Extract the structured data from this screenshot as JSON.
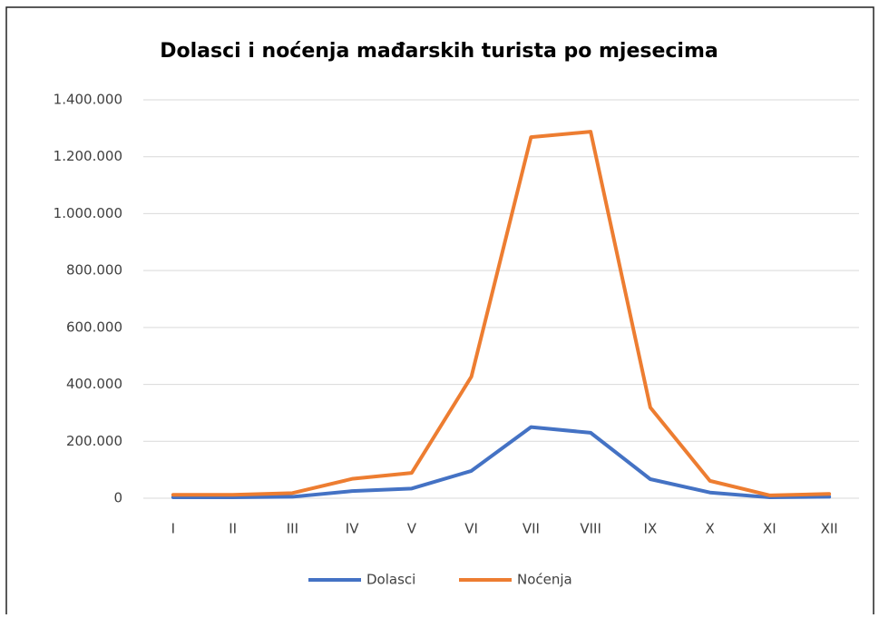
{
  "chart_data": {
    "type": "line",
    "title": "Dolasci i noćenja mađarskih turista po mjesecima",
    "categories": [
      "I",
      "II",
      "III",
      "IV",
      "V",
      "VI",
      "VII",
      "VIII",
      "IX",
      "X",
      "XI",
      "XII"
    ],
    "series": [
      {
        "name": "Dolasci",
        "color": "#4472c4",
        "values": [
          3000,
          3000,
          5000,
          25000,
          34000,
          96000,
          250000,
          230000,
          67000,
          20000,
          3000,
          5000
        ]
      },
      {
        "name": "Noćenja",
        "color": "#ed7d31",
        "values": [
          12000,
          12000,
          18000,
          68000,
          89000,
          427000,
          1269000,
          1288000,
          319000,
          61000,
          10000,
          15000
        ]
      }
    ],
    "ylim": [
      0,
      1400000
    ],
    "yticks": [
      0,
      {
        "value": 200000,
        "label": "200.000"
      },
      {
        "value": 400000,
        "label": "400.000"
      },
      {
        "value": 600000,
        "label": "600.000"
      },
      {
        "value": 800000,
        "label": "800.000"
      },
      {
        "value": 1000000,
        "label": "1.000.000"
      },
      {
        "value": 1200000,
        "label": "1.200.000"
      },
      {
        "value": 1400000,
        "label": "1.400.000"
      }
    ],
    "grid": true,
    "legend": "bottom"
  }
}
